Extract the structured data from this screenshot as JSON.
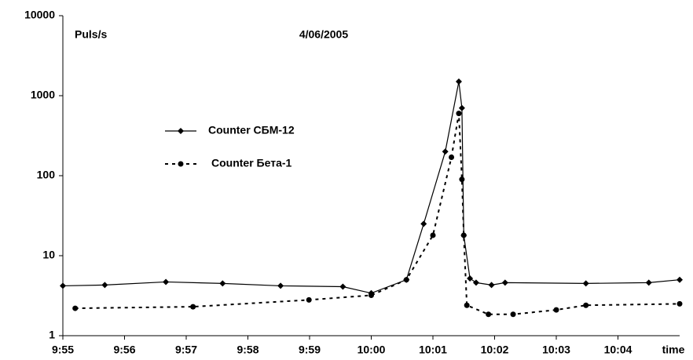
{
  "chart_data": {
    "type": "line",
    "title": "4/06/2005",
    "y_label": "Puls/s",
    "x_label": "time",
    "log_y": true,
    "xlim": [
      0,
      10
    ],
    "xticks": [
      {
        "value": 0,
        "label": "9:55"
      },
      {
        "value": 1,
        "label": "9:56"
      },
      {
        "value": 2,
        "label": "9:57"
      },
      {
        "value": 3,
        "label": "9:58"
      },
      {
        "value": 4,
        "label": "9:59"
      },
      {
        "value": 5,
        "label": "10:00"
      },
      {
        "value": 6,
        "label": "10:01"
      },
      {
        "value": 7,
        "label": "10:02"
      },
      {
        "value": 8,
        "label": "10:03"
      },
      {
        "value": 9,
        "label": "10:04"
      }
    ],
    "ylim": [
      1,
      10000
    ],
    "yticks": [
      1,
      10,
      100,
      1000,
      10000
    ],
    "series": [
      {
        "name": "Counter СБМ-12",
        "color": "#000000",
        "style": "solid",
        "marker": "diamond",
        "x": [
          0,
          0.68,
          1.67,
          2.59,
          3.53,
          4.54,
          5.0,
          5.57,
          5.85,
          6.2,
          6.42,
          6.47,
          6.5,
          6.6,
          6.7,
          6.95,
          7.17,
          8.48,
          9.5,
          10
        ],
        "values": [
          4.2,
          4.3,
          4.7,
          4.5,
          4.2,
          4.1,
          3.4,
          5.0,
          25,
          200,
          1500,
          700,
          18,
          5.2,
          4.6,
          4.3,
          4.6,
          4.5,
          4.6,
          5.0
        ]
      },
      {
        "name": "Counter Бета-1",
        "color": "#000000",
        "style": "dashed",
        "marker": "circle",
        "x": [
          0.2,
          2.11,
          3.99,
          5.0,
          5.57,
          6.0,
          6.3,
          6.42,
          6.47,
          6.5,
          6.55,
          6.9,
          7.3,
          8.0,
          8.48,
          10
        ],
        "values": [
          2.2,
          2.3,
          2.8,
          3.2,
          5.0,
          18,
          170,
          600,
          90,
          18,
          2.4,
          1.85,
          1.85,
          2.1,
          2.4,
          2.5
        ]
      }
    ]
  }
}
